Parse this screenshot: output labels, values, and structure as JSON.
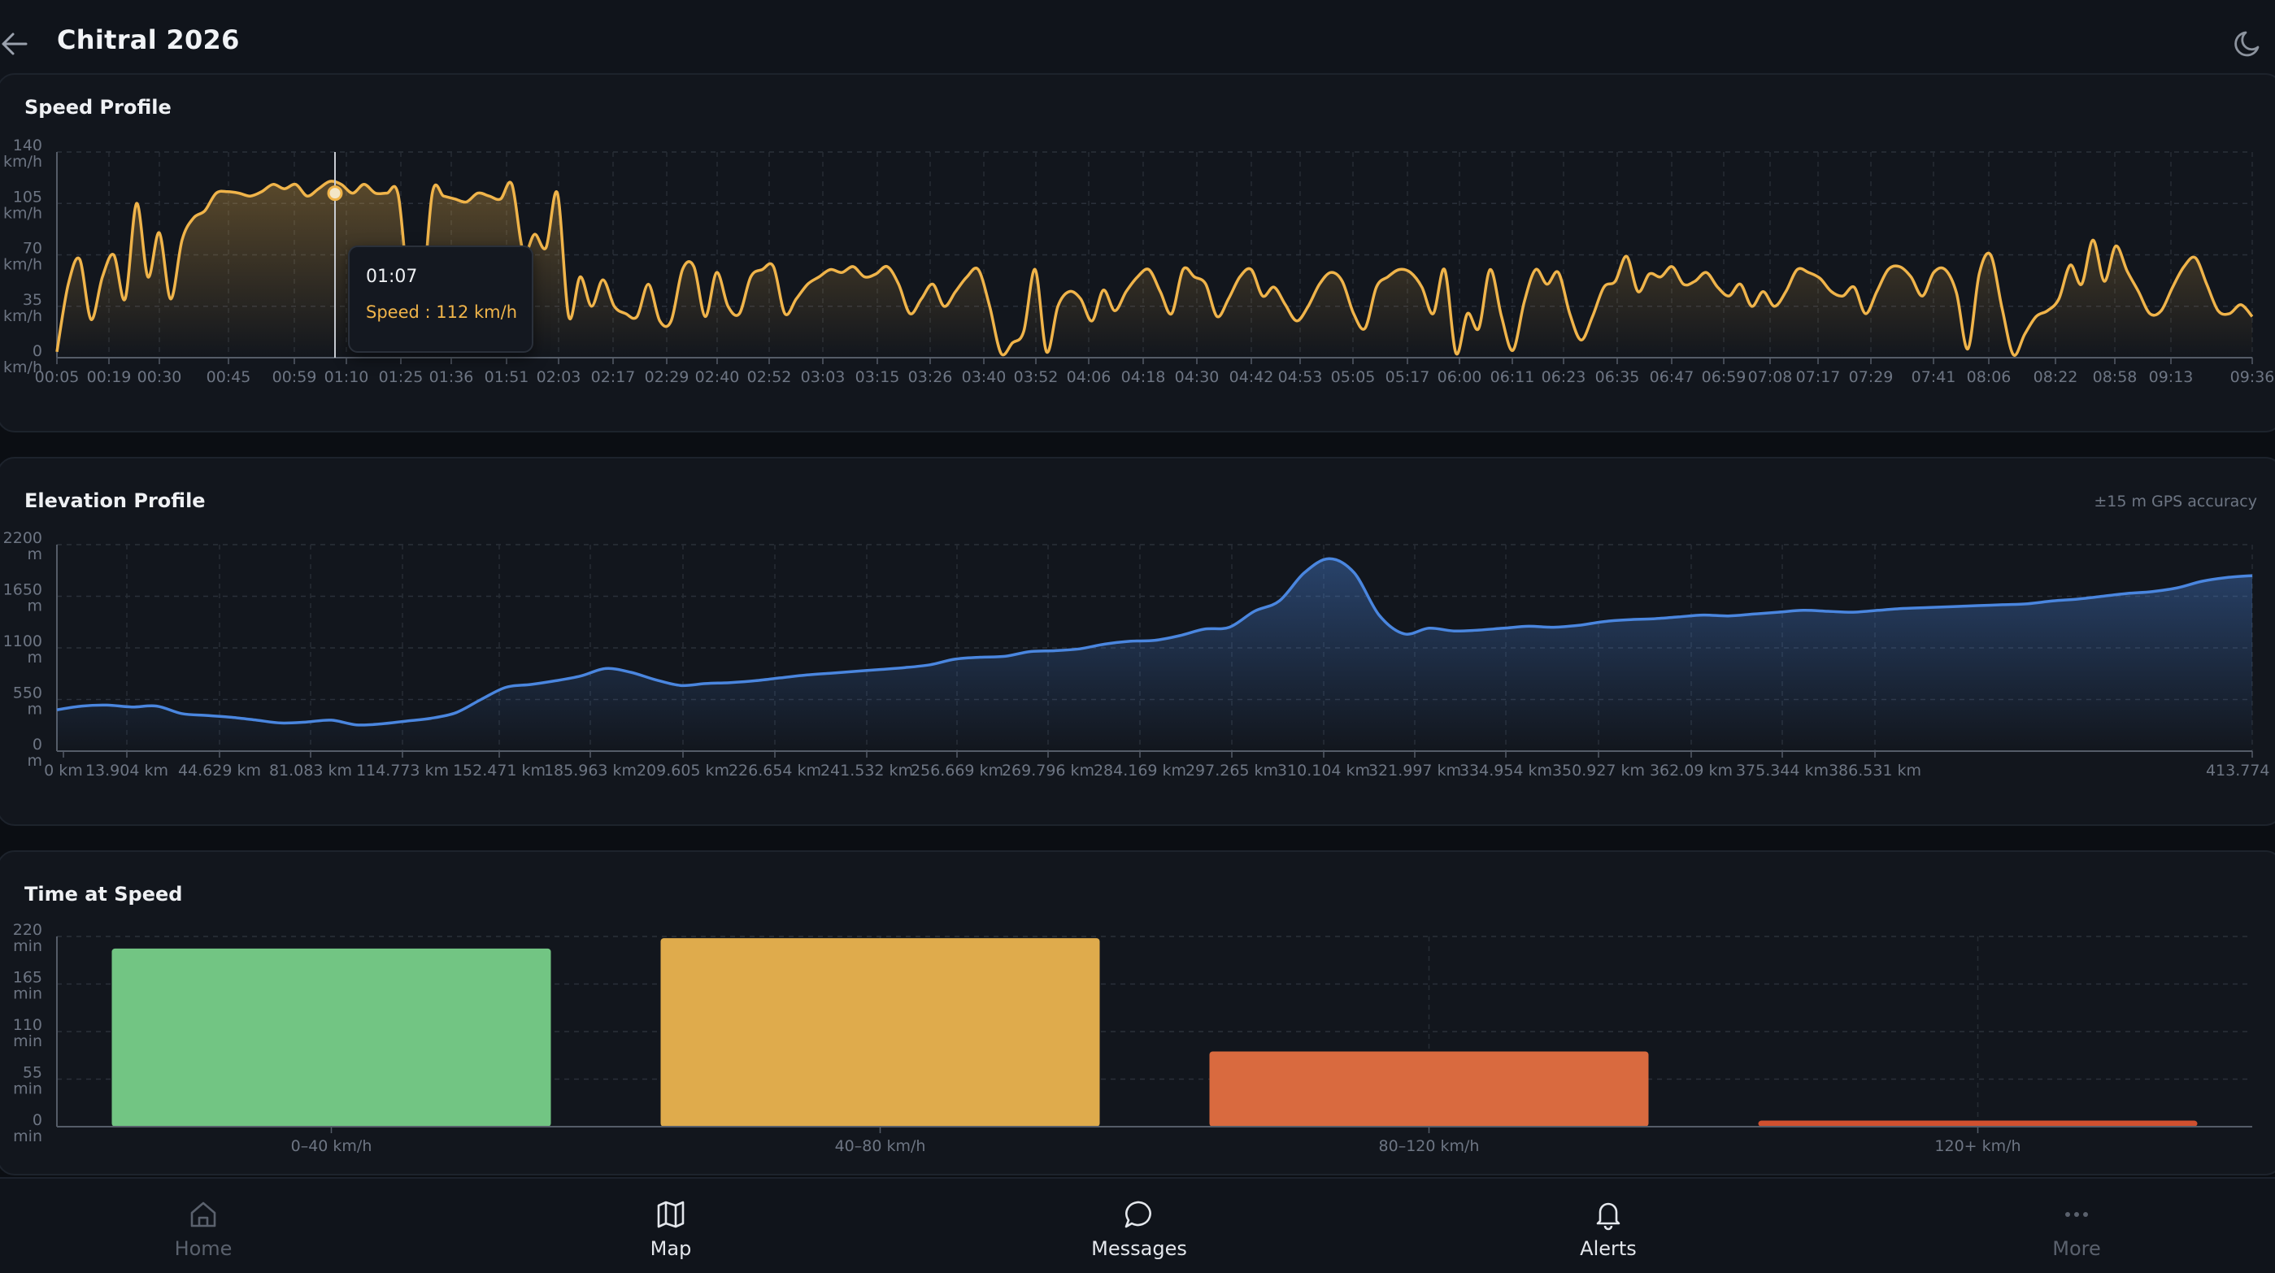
{
  "header": {
    "title": "Chitral 2026",
    "back_icon": "arrow-left-icon",
    "theme_icon": "moon-icon"
  },
  "speed_card": {
    "title": "Speed Profile",
    "tooltip": {
      "time": "01:07",
      "speed_text": "Speed : 112 km/h"
    }
  },
  "elevation_card": {
    "title": "Elevation Profile",
    "note": "±15 m GPS accuracy"
  },
  "time_card": {
    "title": "Time at Speed"
  },
  "nav": [
    {
      "label": "Home",
      "icon": "home-icon",
      "active": false
    },
    {
      "label": "Map",
      "icon": "map-icon",
      "active": true
    },
    {
      "label": "Messages",
      "icon": "message-icon",
      "active": true
    },
    {
      "label": "Alerts",
      "icon": "bell-icon",
      "active": true
    },
    {
      "label": "More",
      "icon": "more-icon",
      "active": false
    }
  ],
  "colors": {
    "speed": "#f0b44a",
    "elevation": "#4a86df",
    "bar1": "#72c583",
    "bar2": "#dfab4c",
    "bar3": "#d96a3f",
    "bar4": "#d0502f"
  },
  "chart_data": [
    {
      "type": "line",
      "title": "Speed Profile",
      "ylabel": "km/h",
      "ylim": [
        0,
        140
      ],
      "y_ticks": [
        "0 km/h",
        "35 km/h",
        "70 km/h",
        "105 km/h",
        "140 km/h"
      ],
      "x_ticks": [
        "00:05",
        "00:19",
        "00:30",
        "00:45",
        "00:59",
        "01:10",
        "01:25",
        "01:36",
        "01:51",
        "02:03",
        "02:17",
        "02:29",
        "02:40",
        "02:52",
        "03:03",
        "03:15",
        "03:26",
        "03:40",
        "03:52",
        "04:06",
        "04:18",
        "04:30",
        "04:42",
        "04:53",
        "05:05",
        "05:17",
        "06:00",
        "06:11",
        "06:23",
        "06:35",
        "06:47",
        "06:59",
        "07:08",
        "07:17",
        "07:29",
        "07:41",
        "08:06",
        "08:22",
        "08:58",
        "09:13",
        "09:36"
      ],
      "series": [
        {
          "values": [
            4,
            50,
            67,
            26,
            55,
            70,
            40,
            105,
            55,
            85,
            40,
            80,
            95,
            100,
            112,
            113,
            112,
            110,
            113,
            118,
            115,
            118,
            110,
            115,
            120,
            118,
            112,
            118,
            112,
            112,
            111,
            40,
            30,
            112,
            110,
            108,
            106,
            112,
            110,
            108,
            118,
            72,
            84,
            75,
            112,
            28,
            55,
            35,
            53,
            35,
            30,
            28,
            50,
            25,
            25,
            60,
            62,
            28,
            58,
            35,
            30,
            55,
            60,
            62,
            30,
            40,
            50,
            55,
            60,
            58,
            62,
            55,
            57,
            62,
            50,
            30,
            40,
            50,
            35,
            45,
            55,
            60,
            35,
            3,
            10,
            18,
            60,
            4,
            35,
            45,
            40,
            25,
            46,
            32,
            45,
            55,
            60,
            45,
            30,
            60,
            55,
            50,
            28,
            40,
            55,
            60,
            42,
            48,
            36,
            25,
            35,
            50,
            58,
            52,
            30,
            20,
            48,
            55,
            60,
            58,
            48,
            30,
            60,
            3,
            30,
            20,
            60,
            28,
            5,
            38,
            60,
            50,
            58,
            30,
            12,
            28,
            48,
            52,
            69,
            45,
            57,
            55,
            62,
            50,
            52,
            58,
            48,
            42,
            50,
            35,
            45,
            35,
            45,
            60,
            58,
            54,
            45,
            42,
            48,
            30,
            45,
            60,
            62,
            55,
            42,
            58,
            60,
            44,
            6,
            57,
            70,
            34,
            2,
            16,
            28,
            32,
            40,
            63,
            50,
            80,
            52,
            76,
            59,
            45,
            30,
            32,
            48,
            62,
            68,
            50,
            32,
            30,
            36,
            28
          ]
        }
      ]
    },
    {
      "type": "area",
      "title": "Elevation Profile",
      "ylabel": "m",
      "ylim": [
        0,
        2200
      ],
      "y_ticks": [
        "0 m",
        "550 m",
        "1100 m",
        "1650 m",
        "2200 m"
      ],
      "x_ticks": [
        "0 km",
        "13.904 km",
        "44.629 km",
        "81.083 km",
        "114.773 km",
        "152.471 km",
        "185.963 km",
        "209.605 km",
        "226.654 km",
        "241.532 km",
        "256.669 km",
        "269.796 km",
        "284.169 km",
        "297.265 km",
        "310.104 km",
        "321.997 km",
        "334.954 km",
        "350.927 km",
        "362.09 km",
        "375.344 km",
        "386.531 km",
        "413.774 km"
      ],
      "series": [
        {
          "values": [
            440,
            480,
            490,
            470,
            480,
            400,
            380,
            360,
            330,
            300,
            310,
            330,
            280,
            290,
            320,
            350,
            410,
            550,
            680,
            710,
            750,
            800,
            880,
            840,
            760,
            700,
            720,
            730,
            750,
            780,
            810,
            830,
            850,
            870,
            890,
            920,
            980,
            1000,
            1010,
            1060,
            1070,
            1090,
            1140,
            1170,
            1180,
            1230,
            1300,
            1320,
            1490,
            1600,
            1900,
            2050,
            1900,
            1450,
            1250,
            1310,
            1280,
            1290,
            1310,
            1330,
            1320,
            1340,
            1380,
            1400,
            1410,
            1430,
            1450,
            1440,
            1460,
            1480,
            1500,
            1490,
            1480,
            1500,
            1520,
            1530,
            1540,
            1550,
            1560,
            1570,
            1600,
            1620,
            1650,
            1680,
            1700,
            1740,
            1810,
            1850,
            1870
          ]
        }
      ]
    },
    {
      "type": "bar",
      "title": "Time at Speed",
      "ylabel": "min",
      "ylim": [
        0,
        220
      ],
      "y_ticks": [
        "0 min",
        "55 min",
        "110 min",
        "165 min",
        "220 min"
      ],
      "categories": [
        "0–40 km/h",
        "40–80 km/h",
        "80–120 km/h",
        "120+ km/h"
      ],
      "values": [
        206,
        218,
        87,
        7
      ]
    }
  ]
}
